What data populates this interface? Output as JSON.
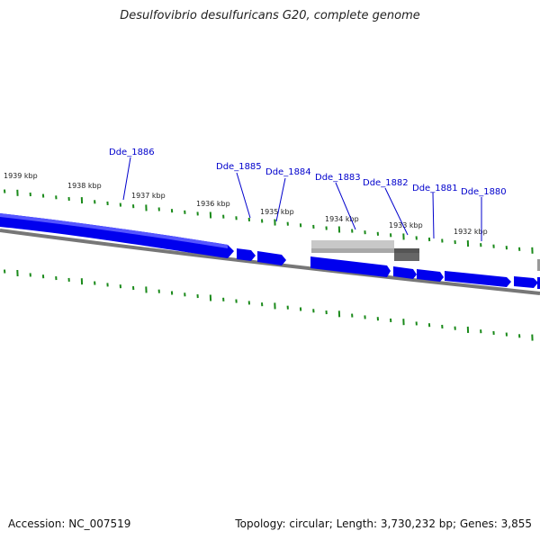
{
  "header": {
    "title": "Desulfovibrio desulfuricans G20, complete genome"
  },
  "footer": {
    "accession": "Accession: NC_007519",
    "summary": "Topology: circular; Length: 3,730,232 bp; Genes: 3,855"
  },
  "colors": {
    "gene_fill": "#0000ee",
    "gene_highlight": "#4a4aff",
    "backbone": "#777777",
    "tick": "#1a8a1a",
    "label_line": "#0000cc",
    "selected_light": "#c8c8c8",
    "selected_dark": "#666666"
  },
  "scale_labels": [
    "1939 kbp",
    "1938 kbp",
    "1937 kbp",
    "1936 kbp",
    "1935 kbp",
    "1934 kbp",
    "1933 kbp",
    "1932 kbp"
  ],
  "gene_labels": [
    "Dde_1886",
    "Dde_1885",
    "Dde_1884",
    "Dde_1883",
    "Dde_1882",
    "Dde_1881",
    "Dde_1880"
  ]
}
